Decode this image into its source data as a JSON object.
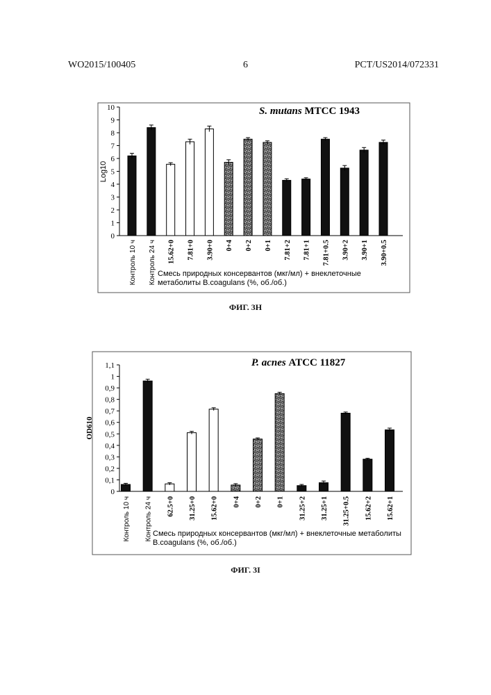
{
  "header": {
    "left": "WO2015/100405",
    "center": "6",
    "right": "PCT/US2014/072331"
  },
  "chart_data": [
    {
      "type": "bar",
      "title_italic": "S. mutans",
      "title_rest": "MTCC 1943",
      "ylabel": "Log10",
      "xlabel_lines": [
        "Смесь природных консервантов (мкг/мл) + внеклеточные",
        "метаболиты B.coagulans (%, об./об.)"
      ],
      "ylim": [
        0,
        10
      ],
      "yticks": [
        "0",
        "1",
        "2",
        "3",
        "4",
        "5",
        "6",
        "7",
        "8",
        "9",
        "10"
      ],
      "categories": [
        "Контроль 10 ч",
        "Контроль 24 ч",
        "15.62+0",
        "7.81+0",
        "3.90+0",
        "0+4",
        "0+2",
        "0+1",
        "7.81+2",
        "7.81+1",
        "7.81+0.5",
        "3.90+2",
        "3.90+1",
        "3.90+0.5"
      ],
      "values": [
        6.2,
        8.4,
        5.55,
        7.3,
        8.3,
        5.7,
        7.5,
        7.25,
        4.3,
        4.4,
        7.5,
        5.25,
        6.65,
        7.25
      ],
      "errors": [
        0.2,
        0.2,
        0.12,
        0.2,
        0.22,
        0.2,
        0.12,
        0.12,
        0.12,
        0.1,
        0.12,
        0.2,
        0.2,
        0.18
      ],
      "fills": [
        "black",
        "black",
        "white",
        "white",
        "white",
        "grey",
        "grey",
        "grey",
        "black",
        "black",
        "black",
        "black",
        "black",
        "black"
      ]
    },
    {
      "type": "bar",
      "title_italic": "P. acnes",
      "title_rest": "ATCC 11827",
      "ylabel": "OD610",
      "xlabel_lines": [
        "Смесь природных консервантов (мкг/мл) + внеклеточные метаболиты",
        "B.coagulans (%, об./об.)"
      ],
      "ylim": [
        0,
        1.1
      ],
      "yticks": [
        "0",
        "0,1",
        "0,2",
        "0,3",
        "0,4",
        "0,5",
        "0,6",
        "0,7",
        "0,8",
        "0,9",
        "1",
        "1,1"
      ],
      "categories": [
        "Контроль 10 ч",
        "Контроль 24 ч",
        "62.5+0",
        "31.25+0",
        "15.62+0",
        "0+4",
        "0+2",
        "0+1",
        "31.25+2",
        "31.25+1",
        "31.25+0.5",
        "15.62+2",
        "15.62+1"
      ],
      "values": [
        0.06,
        0.96,
        0.065,
        0.51,
        0.715,
        0.055,
        0.455,
        0.85,
        0.05,
        0.075,
        0.68,
        0.28,
        0.535
      ],
      "errors": [
        0.01,
        0.015,
        0.01,
        0.012,
        0.012,
        0.012,
        0.01,
        0.012,
        0.01,
        0.015,
        0.01,
        0.008,
        0.015
      ],
      "fills": [
        "black",
        "black",
        "white",
        "white",
        "white",
        "grey",
        "grey",
        "grey",
        "black",
        "black",
        "black",
        "black",
        "black"
      ]
    }
  ],
  "captions": [
    "ФИГ. 3H",
    "ФИГ. 3I"
  ]
}
